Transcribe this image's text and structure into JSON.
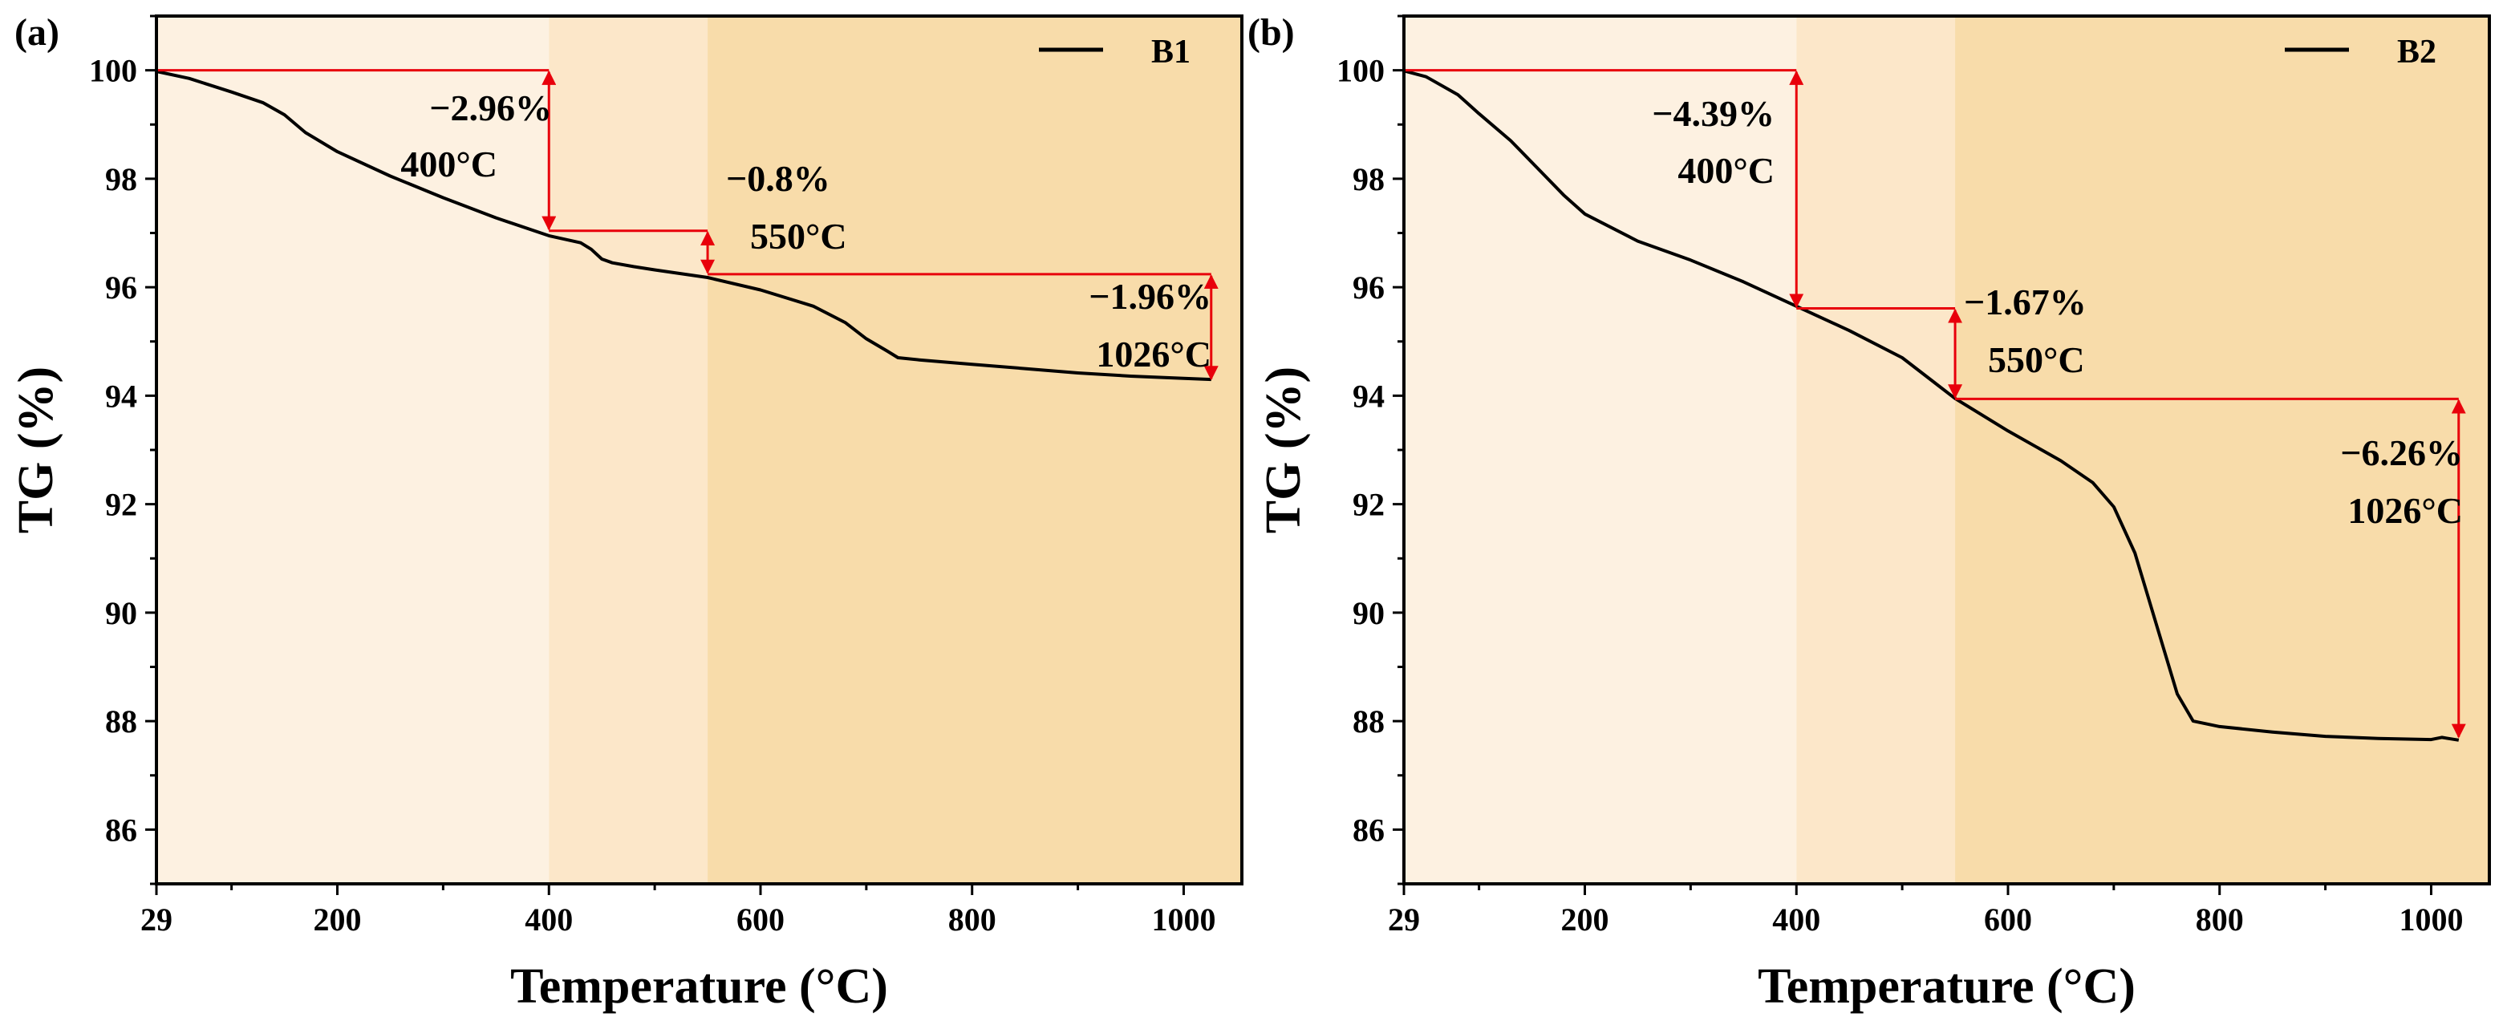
{
  "chart_data": [
    {
      "panel_label": "(a)",
      "type": "line",
      "xlabel": "Temperature (°C)",
      "ylabel": "TG (%)",
      "xlim": [
        29,
        1055
      ],
      "ylim": [
        85,
        101
      ],
      "xticks": [
        29,
        200,
        400,
        600,
        800,
        1000
      ],
      "xtick_labels": [
        "29",
        "200",
        "400",
        "600",
        "800",
        "1000"
      ],
      "yticks": [
        86,
        88,
        90,
        92,
        94,
        96,
        98,
        100
      ],
      "ytick_labels": [
        "86",
        "88",
        "90",
        "92",
        "94",
        "96",
        "98",
        "100"
      ],
      "legend": "B1",
      "legend_position": "top-right",
      "regions": [
        {
          "from": 29,
          "to": 400,
          "color": "#fdf1e1"
        },
        {
          "from": 400,
          "to": 550,
          "color": "#fce7c9"
        },
        {
          "from": 550,
          "to": 1055,
          "color": "#f8dcaa"
        }
      ],
      "series": [
        {
          "name": "B1",
          "x": [
            29,
            60,
            100,
            130,
            150,
            170,
            200,
            250,
            300,
            350,
            400,
            430,
            440,
            450,
            460,
            480,
            500,
            550,
            600,
            650,
            680,
            700,
            720,
            730,
            750,
            800,
            850,
            900,
            950,
            1000,
            1026
          ],
          "y": [
            99.98,
            99.85,
            99.6,
            99.4,
            99.18,
            98.85,
            98.5,
            98.05,
            97.65,
            97.28,
            96.95,
            96.82,
            96.7,
            96.52,
            96.45,
            96.38,
            96.32,
            96.18,
            95.95,
            95.65,
            95.35,
            95.05,
            94.82,
            94.7,
            94.66,
            94.58,
            94.5,
            94.42,
            94.36,
            94.32,
            94.3
          ]
        }
      ],
      "steps": [
        {
          "x": 400,
          "top": 100.0,
          "bottom": 97.04,
          "label_pct": "−2.96%",
          "label_temp": "400°C"
        },
        {
          "x": 550,
          "top": 97.04,
          "bottom": 96.24,
          "label_pct": "−0.8%",
          "label_temp": "550°C"
        },
        {
          "x": 1026,
          "top": 96.24,
          "bottom": 94.28,
          "label_pct": "−1.96%",
          "label_temp": "1026°C"
        }
      ]
    },
    {
      "panel_label": "(b)",
      "type": "line",
      "xlabel": "Temperature (°C)",
      "ylabel": "TG (%)",
      "xlim": [
        29,
        1055
      ],
      "ylim": [
        85,
        101
      ],
      "xticks": [
        29,
        200,
        400,
        600,
        800,
        1000
      ],
      "xtick_labels": [
        "29",
        "200",
        "400",
        "600",
        "800",
        "1000"
      ],
      "yticks": [
        86,
        88,
        90,
        92,
        94,
        96,
        98,
        100
      ],
      "ytick_labels": [
        "86",
        "88",
        "90",
        "92",
        "94",
        "96",
        "98",
        "100"
      ],
      "legend": "B2",
      "legend_position": "top-right",
      "regions": [
        {
          "from": 29,
          "to": 400,
          "color": "#fdf1e1"
        },
        {
          "from": 400,
          "to": 550,
          "color": "#fce7c9"
        },
        {
          "from": 550,
          "to": 1055,
          "color": "#f8dcaa"
        }
      ],
      "series": [
        {
          "name": "B2",
          "x": [
            29,
            50,
            80,
            100,
            130,
            160,
            180,
            200,
            250,
            300,
            350,
            400,
            450,
            500,
            550,
            600,
            650,
            680,
            700,
            720,
            740,
            760,
            775,
            800,
            850,
            900,
            950,
            1000,
            1010,
            1026
          ],
          "y": [
            99.99,
            99.88,
            99.55,
            99.2,
            98.7,
            98.1,
            97.7,
            97.35,
            96.85,
            96.5,
            96.1,
            95.65,
            95.2,
            94.7,
            93.95,
            93.35,
            92.8,
            92.4,
            91.95,
            91.1,
            89.8,
            88.5,
            88.0,
            87.9,
            87.8,
            87.72,
            87.68,
            87.66,
            87.7,
            87.65
          ]
        }
      ],
      "steps": [
        {
          "x": 400,
          "top": 100.0,
          "bottom": 95.61,
          "label_pct": "−4.39%",
          "label_temp": "400°C"
        },
        {
          "x": 550,
          "top": 95.61,
          "bottom": 93.94,
          "label_pct": "−1.67%",
          "label_temp": "550°C"
        },
        {
          "x": 1026,
          "top": 93.94,
          "bottom": 87.68,
          "label_pct": "−6.26%",
          "label_temp": "1026°C"
        }
      ]
    }
  ]
}
